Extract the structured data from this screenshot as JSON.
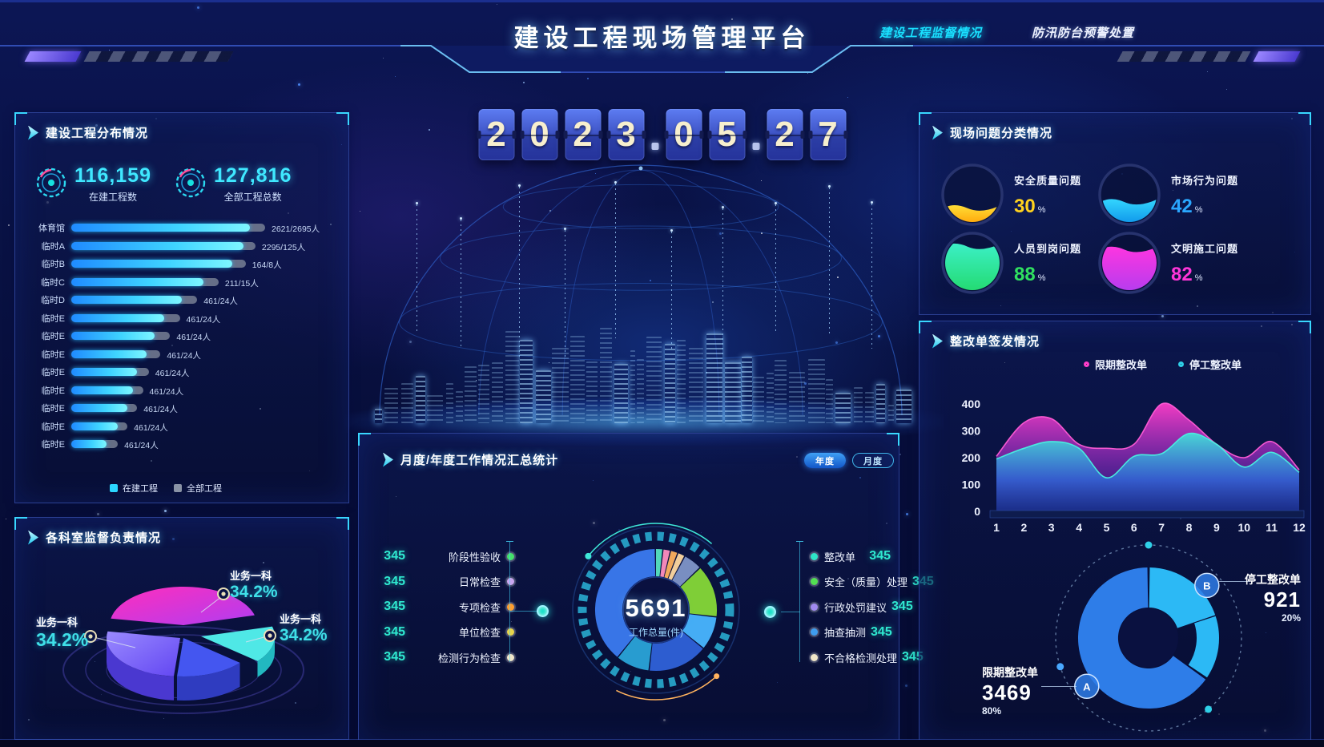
{
  "header": {
    "title": "建设工程现场管理平台",
    "tabs": [
      {
        "label": "建设工程监督情况",
        "active": true
      },
      {
        "label": "防汛防台预警处置",
        "active": false
      }
    ]
  },
  "date_display": {
    "groups": [
      "2023",
      "05",
      "27"
    ],
    "separator": "."
  },
  "left_top": {
    "title": "建设工程分布情况",
    "stats": [
      {
        "value": "116,159",
        "label": "在建工程数"
      },
      {
        "value": "127,816",
        "label": "全部工程总数"
      }
    ],
    "legend": [
      {
        "label": "在建工程",
        "color": "#2bd6ff"
      },
      {
        "label": "全部工程",
        "color": "#8a93a6"
      }
    ],
    "chart_data": {
      "type": "bar",
      "orientation": "horizontal",
      "categories": [
        "体育馆",
        "临时A",
        "临时B",
        "临时C",
        "临时D",
        "临时E",
        "临时E",
        "临时E",
        "临时E",
        "临时E",
        "临时E",
        "临时E",
        "临时E"
      ],
      "value_labels": [
        "2621/2695人",
        "2295/125人",
        "164/8人",
        "211/15人",
        "461/24人",
        "461/24人",
        "461/24人",
        "461/24人",
        "461/24人",
        "461/24人",
        "461/24人",
        "461/24人",
        "461/24人"
      ],
      "series": [
        {
          "name": "在建工程",
          "values_pct": [
            92,
            89,
            83,
            68,
            57,
            48,
            43,
            39,
            34,
            32,
            29,
            24,
            18
          ]
        },
        {
          "name": "全部工程",
          "values_pct": [
            100,
            95,
            90,
            76,
            65,
            56,
            51,
            46,
            40,
            37,
            34,
            29,
            24
          ]
        }
      ]
    }
  },
  "left_bottom": {
    "title": "各科室监督负责情况",
    "chart_data": {
      "type": "pie",
      "slices": [
        {
          "label": "业务一科",
          "pct": "34.2%",
          "color": "#e63ad0",
          "position": "top"
        },
        {
          "label": "业务一科",
          "pct": "34.2%",
          "color": "#4fe8e6",
          "position": "right"
        },
        {
          "label": "业务一科",
          "pct": "34.2%",
          "color": "#7e6cf8",
          "position": "left"
        }
      ]
    }
  },
  "center_bottom": {
    "title": "月度/年度工作情况汇总统计",
    "buttons": [
      {
        "label": "年度",
        "active": true
      },
      {
        "label": "月度",
        "active": false
      }
    ],
    "total": {
      "value": "5691",
      "label": "工作总量(件)"
    },
    "left_items": [
      {
        "value": "345",
        "label": "阶段性验收",
        "dot_color": "#45e06a"
      },
      {
        "value": "345",
        "label": "日常检查",
        "dot_color": "#c9a6f0"
      },
      {
        "value": "345",
        "label": "专项检查",
        "dot_color": "#ff9d2e"
      },
      {
        "value": "345",
        "label": "单位检查",
        "dot_color": "#e8d44a"
      },
      {
        "value": "345",
        "label": "检测行为检查",
        "dot_color": "#f0e6c8"
      }
    ],
    "right_items": [
      {
        "label": "整改单",
        "value": "345",
        "dot_color": "#2ee6c8"
      },
      {
        "label": "安全（质量）处理",
        "value": "345",
        "dot_color": "#52e052"
      },
      {
        "label": "行政处罚建议",
        "value": "345",
        "dot_color": "#a08af0"
      },
      {
        "label": "抽查抽测",
        "value": "345",
        "dot_color": "#3f9df0"
      },
      {
        "label": "不合格检测处理",
        "value": "345",
        "dot_color": "#f0e6c8"
      }
    ],
    "chart_data": {
      "type": "pie",
      "center_total": 5691,
      "slices": [
        {
          "color": "#57e3c0",
          "value": 2
        },
        {
          "color": "#ff8fc0",
          "value": 2
        },
        {
          "color": "#ffb25e",
          "value": 2
        },
        {
          "color": "#ffd9a0",
          "value": 2
        },
        {
          "color": "#8096c8",
          "value": 5
        },
        {
          "color": "#86d937",
          "value": 14
        },
        {
          "color": "#49b6ff",
          "value": 9
        },
        {
          "color": "#2f62d8",
          "value": 16
        },
        {
          "color": "#2aa4d8",
          "value": 9
        },
        {
          "color": "#3b7bf0",
          "value": 39
        }
      ]
    }
  },
  "right_top": {
    "title": "现场问题分类情况",
    "gauges": [
      {
        "label": "安全质量问题",
        "value": 30,
        "unit": "%",
        "colors": [
          "#ffe03a",
          "#ff9d00"
        ],
        "text_color": "#ffd21e"
      },
      {
        "label": "市场行为问题",
        "value": 42,
        "unit": "%",
        "colors": [
          "#35d8ff",
          "#0a8fe8"
        ],
        "text_color": "#2aa7ff"
      },
      {
        "label": "人员到岗问题",
        "value": 88,
        "unit": "%",
        "colors": [
          "#3cf0c8",
          "#22d96a"
        ],
        "text_color": "#30e060"
      },
      {
        "label": "文明施工问题",
        "value": 82,
        "unit": "%",
        "colors": [
          "#ff35e0",
          "#b03df0"
        ],
        "text_color": "#ff35d8"
      }
    ]
  },
  "right_bottom": {
    "title": "整改单签发情况",
    "legend": [
      {
        "label": "限期整改单",
        "color": "#ff3ec9"
      },
      {
        "label": "停工整改单",
        "color": "#2fd0e8"
      }
    ],
    "chart_data": {
      "type": "area",
      "x": [
        1,
        2,
        3,
        4,
        5,
        6,
        7,
        8,
        9,
        10,
        11,
        12
      ],
      "ylim": [
        0,
        400
      ],
      "yticks": [
        0,
        100,
        200,
        300,
        400
      ],
      "series": [
        {
          "name": "限期整改单",
          "color": "#ff3ec9",
          "values": [
            205,
            330,
            345,
            250,
            235,
            250,
            400,
            340,
            250,
            200,
            260,
            155
          ]
        },
        {
          "name": "停工整改单",
          "color": "#2fd0e8",
          "values": [
            195,
            235,
            260,
            235,
            125,
            205,
            215,
            290,
            250,
            165,
            220,
            145
          ]
        }
      ]
    },
    "donut": {
      "type": "pie",
      "slices": [
        {
          "marker": "A",
          "label": "限期整改单",
          "value": "3469",
          "pct": "80%",
          "color": "#2e7de8"
        },
        {
          "marker": "B",
          "label": "停工整改单",
          "value": "921",
          "pct": "20%",
          "color": "#2cb9f5"
        }
      ]
    }
  }
}
